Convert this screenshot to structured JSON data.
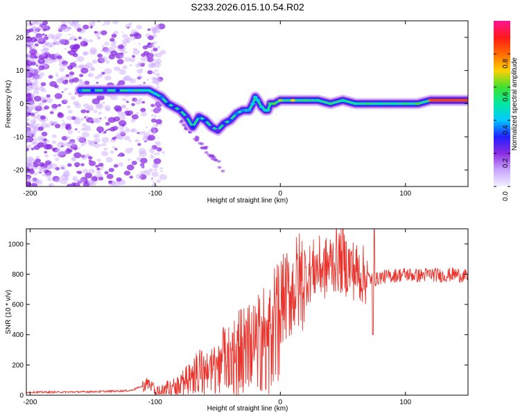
{
  "title": "S233.2026.015.10.54.R02",
  "chart_data": [
    {
      "type": "heatmap",
      "name": "spectrogram",
      "xlabel": "Height of straight line (km)",
      "ylabel": "Frequency (Hz)",
      "xlim": [
        -203,
        150
      ],
      "ylim": [
        -25,
        25
      ],
      "xticks": [
        -200,
        -100,
        0,
        100
      ],
      "yticks": [
        -20,
        -10,
        0,
        10,
        20
      ],
      "colorbar": {
        "label": "Normalized spectral amplitude",
        "range": [
          0,
          1
        ],
        "ticks": [
          0.0,
          0.2,
          0.4,
          0.6,
          0.8
        ],
        "colors": [
          "#f2f0ff",
          "#c9a6ff",
          "#8a2be2",
          "#2020ff",
          "#00c8ff",
          "#00e8a0",
          "#40e030",
          "#ffd000",
          "#ff6a00",
          "#ff1a1a",
          "#ff1493"
        ]
      },
      "ridge": {
        "x": [
          -160,
          -150,
          -140,
          -130,
          -120,
          -110,
          -105,
          -100,
          -95,
          -90,
          -85,
          -80,
          -75,
          -70,
          -65,
          -60,
          -55,
          -50,
          -45,
          -40,
          -35,
          -30,
          -25,
          -22,
          -20,
          -18,
          -15,
          -12,
          -10,
          -8,
          -5,
          0,
          10,
          20,
          30,
          40,
          50,
          60,
          70,
          80,
          90,
          100,
          110,
          120,
          130,
          140,
          150
        ],
        "freq": [
          4,
          4,
          4,
          4,
          4,
          4,
          4,
          3,
          2,
          0,
          -1,
          -2,
          -4,
          -7,
          -4,
          -5,
          -7,
          -8,
          -6,
          -5,
          -3,
          -2,
          -2,
          0,
          2,
          1,
          -1,
          -2,
          -2,
          0,
          0,
          1,
          1,
          1,
          1,
          0,
          1,
          0,
          0,
          0,
          0,
          0,
          0,
          1,
          1,
          1,
          1
        ],
        "amplitude": [
          0.35,
          0.3,
          0.25,
          0.3,
          0.4,
          0.45,
          0.45,
          0.4,
          0.35,
          0.3,
          0.28,
          0.28,
          0.25,
          0.3,
          0.32,
          0.3,
          0.25,
          0.22,
          0.28,
          0.32,
          0.35,
          0.36,
          0.38,
          0.4,
          0.42,
          0.42,
          0.44,
          0.46,
          0.48,
          0.55,
          0.6,
          0.65,
          0.7,
          0.55,
          0.5,
          0.55,
          0.5,
          0.5,
          0.55,
          0.5,
          0.5,
          0.55,
          0.6,
          0.8,
          0.85,
          0.85,
          0.85
        ]
      }
    },
    {
      "type": "line",
      "name": "snr",
      "xlabel": "Height of straight line (km)",
      "ylabel": "SNR (10 * v/v)",
      "xlim": [
        -203,
        150
      ],
      "ylim": [
        0,
        1100
      ],
      "xticks": [
        -200,
        -100,
        0,
        100
      ],
      "yticks": [
        0,
        200,
        400,
        600,
        800,
        1000
      ],
      "color": "#e8342c",
      "x": [
        -203,
        -180,
        -160,
        -140,
        -120,
        -110,
        -105,
        -100,
        -95,
        -90,
        -85,
        -80,
        -75,
        -70,
        -65,
        -60,
        -55,
        -50,
        -45,
        -40,
        -35,
        -30,
        -25,
        -20,
        -15,
        -10,
        -5,
        0,
        5,
        10,
        15,
        20,
        25,
        30,
        35,
        40,
        45,
        50,
        55,
        60,
        65,
        70,
        75,
        80,
        90,
        100,
        110,
        120,
        130,
        140,
        150
      ],
      "y": [
        20,
        20,
        22,
        25,
        30,
        60,
        80,
        30,
        40,
        60,
        70,
        90,
        150,
        200,
        210,
        180,
        200,
        230,
        320,
        330,
        380,
        400,
        420,
        440,
        480,
        520,
        580,
        620,
        650,
        700,
        750,
        780,
        820,
        850,
        830,
        870,
        900,
        880,
        850,
        820,
        800,
        780,
        760,
        780,
        790,
        800,
        790,
        800,
        790,
        800,
        780
      ],
      "spikes": [
        {
          "x": 50,
          "y": 1100
        },
        {
          "x": 75,
          "y": 1100
        },
        {
          "x": 74,
          "y": 400
        }
      ]
    }
  ]
}
